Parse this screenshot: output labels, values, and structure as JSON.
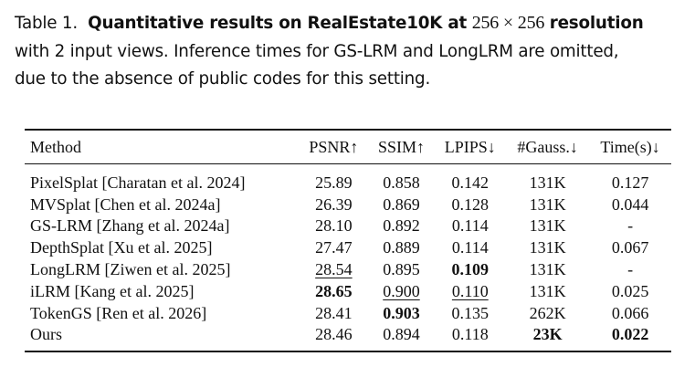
{
  "caption": {
    "label": "Table 1.",
    "title": "Quantitative results on RealEstate10K at",
    "resolution": "256 × 256",
    "title_end": "resolution",
    "lines": [
      "with 2 input views. Inference times for GS-LRM and LongLRM are omitted,",
      "due to the absence of public codes for this setting."
    ]
  },
  "table": {
    "header": [
      "Method",
      "PSNR↑",
      "SSIM↑",
      "LPIPS↓",
      "#Gauss.↓",
      "Time(s)↓"
    ],
    "rows": [
      [
        "PixelSplat [Charatan et al. 2024]",
        "25.89",
        "0.858",
        "0.142",
        "131K",
        "0.127"
      ],
      [
        "MVSplat [Chen et al. 2024a]",
        "26.39",
        "0.869",
        "0.128",
        "131K",
        "0.044"
      ],
      [
        "GS-LRM [Zhang et al. 2024a]",
        "28.10",
        "0.892",
        "0.114",
        "131K",
        "-"
      ],
      [
        "DepthSplat [Xu et al. 2025]",
        "27.47",
        "0.889",
        "0.114",
        "131K",
        "0.067"
      ],
      [
        "LongLRM [Ziwen et al. 2025]",
        "28.54",
        "0.895",
        "0.109",
        "131K",
        "-"
      ],
      [
        "iLRM [Kang et al. 2025]",
        "28.65",
        "0.900",
        "0.110",
        "131K",
        "0.025"
      ],
      [
        "TokenGS [Ren et al. 2026]",
        "28.41",
        "0.903",
        "0.135",
        "262K",
        "0.066"
      ],
      [
        "Ours",
        "28.46",
        "0.894",
        "0.118",
        "23K",
        "0.022"
      ]
    ],
    "bold": [
      [
        4,
        3
      ],
      [
        5,
        1
      ],
      [
        6,
        2
      ],
      [
        7,
        4
      ],
      [
        7,
        5
      ]
    ],
    "underline": [
      [
        4,
        1
      ],
      [
        5,
        2
      ],
      [
        5,
        3
      ]
    ]
  }
}
